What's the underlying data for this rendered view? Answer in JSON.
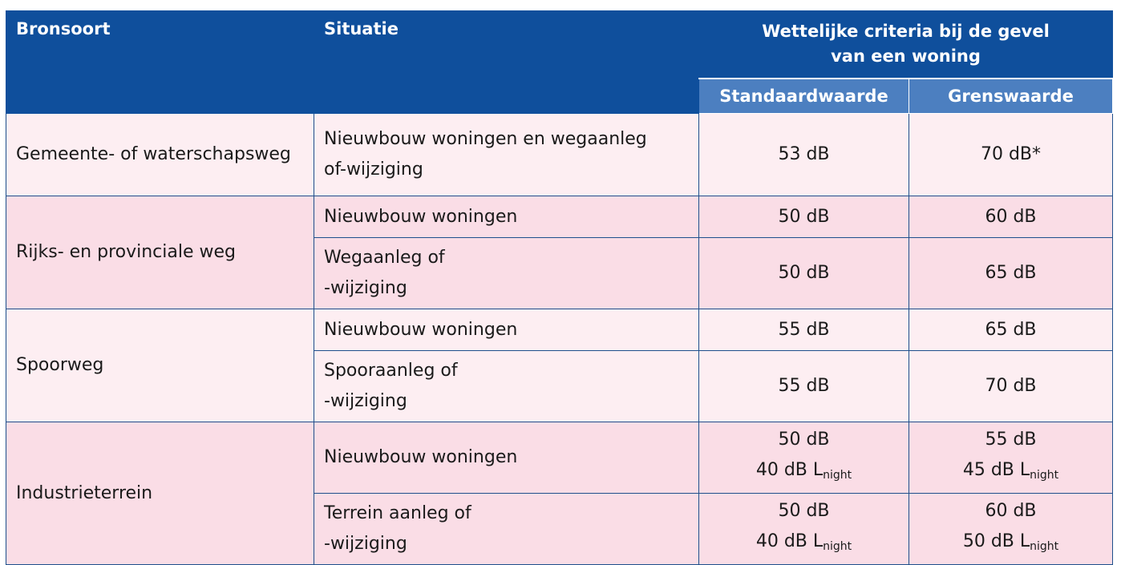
{
  "header": {
    "col_source": "Bronsoort",
    "col_situation": "Situatie",
    "criteria_line1": "Wettelijke criteria bij de gevel",
    "criteria_line2": "van een woning",
    "col_standard": "Standaardwaarde",
    "col_limit": "Grenswaarde"
  },
  "rows": [
    {
      "source": "Gemeente- of waterschapsweg",
      "situations": [
        {
          "situation_line1": "Nieuwbouw woningen en wegaanleg",
          "situation_line2": "of-wijziging",
          "standard": "53 dB",
          "limit": "70 dB*"
        }
      ]
    },
    {
      "source": "Rijks- en provinciale weg",
      "situations": [
        {
          "situation_line1": "Nieuwbouw woningen",
          "standard": "50 dB",
          "limit": "60 dB"
        },
        {
          "situation_line1": "Wegaanleg of",
          "situation_line2": "-wijziging",
          "standard": "50 dB",
          "limit": "65 dB"
        }
      ]
    },
    {
      "source": "Spoorweg",
      "situations": [
        {
          "situation_line1": "Nieuwbouw woningen",
          "standard": "55 dB",
          "limit": "65 dB"
        },
        {
          "situation_line1": "Spooraanleg of",
          "situation_line2": "-wijziging",
          "standard": "55 dB",
          "limit": "70 dB"
        }
      ]
    },
    {
      "source": "Industrieterrein",
      "situations": [
        {
          "situation_line1": "Nieuwbouw woningen",
          "standard": "50 dB",
          "standard_night": "40 dB L",
          "limit": "55 dB",
          "limit_night": "45 dB L"
        },
        {
          "situation_line1": "Terrein aanleg of",
          "situation_line2": "-wijziging",
          "standard": "50 dB",
          "standard_night": "40 dB L",
          "limit": "60 dB",
          "limit_night": "50 dB L"
        }
      ]
    }
  ],
  "night_subscript": "night",
  "colors": {
    "header_bg": "#0f4f9c",
    "subheader_bg": "#4c7fc0",
    "row_light": "#fdeef2",
    "row_dark": "#fadde6",
    "border": "#1e4f8c"
  }
}
